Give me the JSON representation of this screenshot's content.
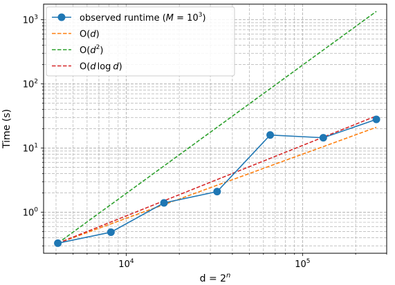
{
  "chart_data": {
    "type": "line",
    "xscale": "log",
    "yscale": "log",
    "xlabel": "d = 2",
    "xlabel_sup": "n",
    "ylabel": "Time (s)",
    "xlim": [
      3400,
      300000
    ],
    "ylim": [
      0.23,
      1750
    ],
    "grid": true,
    "legend_position": "top-left",
    "x_ticks": [
      {
        "value": 10000,
        "base": "10",
        "exp": "4"
      },
      {
        "value": 100000,
        "base": "10",
        "exp": "5"
      }
    ],
    "y_ticks": [
      {
        "value": 1,
        "base": "10",
        "exp": "0"
      },
      {
        "value": 10,
        "base": "10",
        "exp": "1"
      },
      {
        "value": 100,
        "base": "10",
        "exp": "2"
      },
      {
        "value": 1000,
        "base": "10",
        "exp": "3"
      }
    ],
    "series": [
      {
        "name": "observed runtime",
        "legend": {
          "text": "observed runtime (",
          "math": "M",
          "eq": " = 10",
          "sup": "3",
          "close": ")"
        },
        "color": "#1f77b4",
        "style": "solid-markers",
        "x": [
          4096,
          8192,
          16384,
          32768,
          65536,
          131072,
          262144
        ],
        "y": [
          0.33,
          0.49,
          1.4,
          2.1,
          16.0,
          14.5,
          28.0
        ]
      },
      {
        "name": "O(d)",
        "legend": {
          "text": "O(",
          "math": "d",
          "close": ")"
        },
        "color": "#ff7f0e",
        "style": "dashed",
        "x": [
          4096,
          262144
        ],
        "y": [
          0.33,
          21.1
        ]
      },
      {
        "name": "O(d²)",
        "legend": {
          "text": "O(",
          "math": "d",
          "sup": "2",
          "close": ")"
        },
        "color": "#2ca02c",
        "style": "dashed",
        "x": [
          4096,
          262144
        ],
        "y": [
          0.33,
          1350
        ]
      },
      {
        "name": "O(d log d)",
        "legend": {
          "text": "O(",
          "math": "d",
          "rest": "log",
          "math2": "d",
          "close": ")"
        },
        "color": "#d62728",
        "style": "dashed",
        "x": [
          4096,
          262144
        ],
        "y": [
          0.33,
          31.7
        ]
      }
    ]
  }
}
